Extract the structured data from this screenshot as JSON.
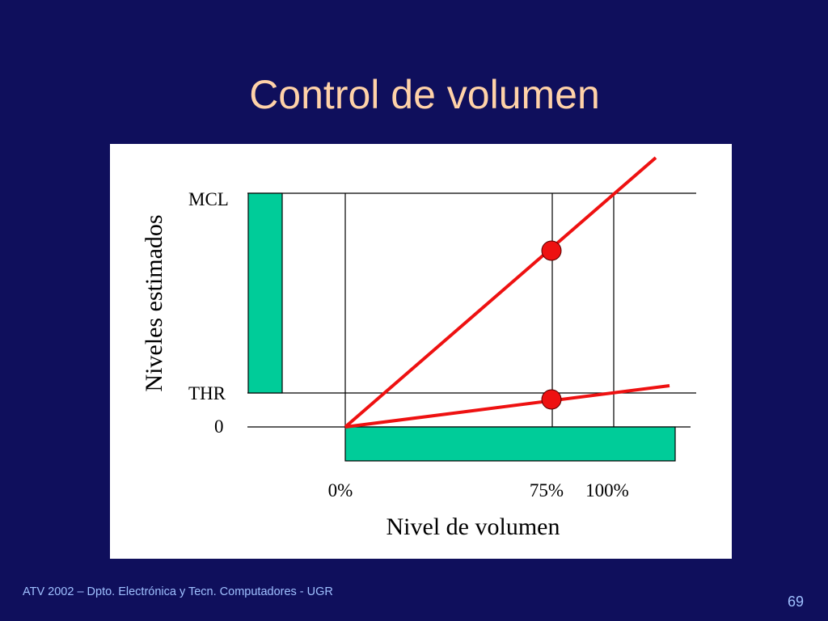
{
  "slide": {
    "title": "Control de volumen",
    "footer": "ATV 2002 – Dpto. Electrónica y Tecn. Computadores - UGR",
    "page_number": "69"
  },
  "diagram": {
    "y_axis_title": "Niveles estimados",
    "x_axis_title": "Nivel de volumen",
    "level_labels": {
      "mcl": "MCL",
      "thr": "THR",
      "zero": "0"
    },
    "x_ticks": {
      "zero": "0%",
      "seventy_five": "75%",
      "hundred": "100%"
    }
  },
  "colors": {
    "background": "#0f0f5c",
    "title": "#ffd2a8",
    "footer": "#9fc0ff",
    "bar": "#00cc99",
    "line": "#ee1111",
    "marker": "#ee1111"
  }
}
